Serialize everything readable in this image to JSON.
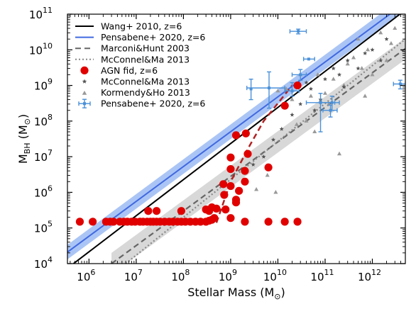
{
  "chart_data": {
    "type": "scatter",
    "title": "",
    "xlabel": "Stellar Mass (M",
    "xlabel_sub": "⊙",
    "xlabel_close": ")",
    "ylabel": "M",
    "ylabel_sub": "BH",
    "ylabel_unit": " (M",
    "ylabel_unit_sub": "⊙",
    "ylabel_close": ")",
    "xscale": "log",
    "yscale": "log",
    "xlim": [
      350000,
      5000000000000
    ],
    "ylim": [
      10000,
      100000000000
    ],
    "grid": false,
    "legend_position": "top-left",
    "x_ticks": [
      {
        "value": 1000000,
        "base": "10",
        "exp": "6"
      },
      {
        "value": 10000000,
        "base": "10",
        "exp": "7"
      },
      {
        "value": 100000000,
        "base": "10",
        "exp": "8"
      },
      {
        "value": 1000000000,
        "base": "10",
        "exp": "9"
      },
      {
        "value": 10000000000,
        "base": "10",
        "exp": "10"
      },
      {
        "value": 100000000000,
        "base": "10",
        "exp": "11"
      },
      {
        "value": 1000000000000,
        "base": "10",
        "exp": "12"
      }
    ],
    "y_ticks": [
      {
        "value": 10000,
        "base": "10",
        "exp": "4"
      },
      {
        "value": 100000,
        "base": "10",
        "exp": "5"
      },
      {
        "value": 1000000,
        "base": "10",
        "exp": "6"
      },
      {
        "value": 10000000,
        "base": "10",
        "exp": "7"
      },
      {
        "value": 100000000,
        "base": "10",
        "exp": "8"
      },
      {
        "value": 1000000000,
        "base": "10",
        "exp": "9"
      },
      {
        "value": 10000000000,
        "base": "10",
        "exp": "10"
      },
      {
        "value": 100000000000,
        "base": "10",
        "exp": "11"
      }
    ],
    "legend": [
      {
        "label": "Wang+ 2010, z=6",
        "kind": "line",
        "color": "#000000",
        "dash": "solid"
      },
      {
        "label": "Pensabene+ 2020, z=6",
        "kind": "line",
        "color": "#4169e1",
        "dash": "solid"
      },
      {
        "label": "Marconi&Hunt 2003",
        "kind": "line",
        "color": "#666666",
        "dash": "dashed"
      },
      {
        "label": "McConnel&Ma 2013",
        "kind": "line",
        "color": "#888888",
        "dash": "dotted"
      },
      {
        "label": "AGN fid, z=6",
        "kind": "circle",
        "color": "#e00000"
      },
      {
        "label": "McConnel&Ma 2013",
        "kind": "star",
        "color": "#555555"
      },
      {
        "label": "Kormendy&Ho 2013",
        "kind": "triangle",
        "color": "#999999"
      },
      {
        "label": "Pensabene+ 2020, z=6",
        "kind": "errorbar",
        "color": "#4a90d9"
      }
    ],
    "relations": [
      {
        "name": "Wang+ 2010, z=6",
        "color": "#000000",
        "dash": "solid",
        "points": [
          [
            350000,
            7400
          ],
          [
            5000000000000,
            131000000000
          ]
        ]
      },
      {
        "name": "Pensabene+ 2020, z=6",
        "color": "#4169e1",
        "dash": "solid",
        "band_factor": 1.6,
        "points": [
          [
            350000,
            21000
          ],
          [
            5000000000000,
            209000000000
          ]
        ]
      },
      {
        "name": "Marconi&Hunt 2003",
        "color": "#666666",
        "dash": "dashed",
        "band_factor": 2.0,
        "points": [
          [
            3000000,
            10000
          ],
          [
            5000000000000,
            10800000000
          ]
        ]
      },
      {
        "name": "McConnel&Ma 2013",
        "color": "#888888",
        "dash": "dotted",
        "points": [
          [
            6000000,
            10000
          ],
          [
            5000000000000,
            20000000000
          ]
        ]
      }
    ],
    "agn_track": {
      "color": "#b22222",
      "dash": "dashed",
      "points": [
        [
          500000000,
          140000
        ],
        [
          1000000000,
          2000000
        ],
        [
          2500000000,
          20000000
        ],
        [
          5000000000,
          100000000
        ],
        [
          20000000000,
          1000000000
        ]
      ]
    },
    "series": [
      {
        "name": "AGN fid, z=6",
        "marker": "circle",
        "color": "#e00000",
        "points": [
          [
            640000,
            150000
          ],
          [
            1200000,
            150000
          ],
          [
            2300000,
            150000
          ],
          [
            2800000,
            150000
          ],
          [
            3300000,
            150000
          ],
          [
            4500000,
            150000
          ],
          [
            5500000,
            150000
          ],
          [
            6500000,
            150000
          ],
          [
            8000000,
            150000
          ],
          [
            9500000,
            150000
          ],
          [
            12000000,
            150000
          ],
          [
            14000000,
            150000
          ],
          [
            17000000,
            150000
          ],
          [
            20000000,
            150000
          ],
          [
            23000000,
            150000
          ],
          [
            27000000,
            150000
          ],
          [
            32000000,
            150000
          ],
          [
            40000000,
            150000
          ],
          [
            50000000,
            150000
          ],
          [
            60000000,
            150000
          ],
          [
            75000000,
            150000
          ],
          [
            90000000,
            150000
          ],
          [
            110000000,
            150000
          ],
          [
            140000000,
            150000
          ],
          [
            180000000,
            150000
          ],
          [
            230000000,
            150000
          ],
          [
            300000000,
            150000
          ],
          [
            350000000,
            160000
          ],
          [
            400000000,
            170000
          ],
          [
            450000000,
            190000
          ],
          [
            18000000,
            300000
          ],
          [
            27000000,
            300000
          ],
          [
            90000000,
            300000
          ],
          [
            300000000,
            330000
          ],
          [
            350000000,
            300000
          ],
          [
            400000000,
            380000
          ],
          [
            500000000,
            350000
          ],
          [
            780000000,
            330000
          ],
          [
            1000000000,
            190000
          ],
          [
            1300000000,
            520000
          ],
          [
            1300000000,
            620000
          ],
          [
            730000000,
            850000
          ],
          [
            1000000000,
            1500000
          ],
          [
            1500000000,
            1100000
          ],
          [
            2000000000,
            2000000
          ],
          [
            700000000,
            1700000
          ],
          [
            1000000000,
            4500000
          ],
          [
            2000000000,
            4000000
          ],
          [
            2300000000,
            12000000
          ],
          [
            1000000000,
            9500000
          ],
          [
            1300000000,
            40000000
          ],
          [
            2100000000,
            45000000
          ],
          [
            2000000000,
            150000
          ],
          [
            6300000000,
            150000
          ],
          [
            14000000000,
            150000
          ],
          [
            26000000000,
            150000
          ],
          [
            6300000000,
            5000000
          ],
          [
            14000000000,
            270000000
          ],
          [
            26000000000,
            1000000000
          ]
        ]
      },
      {
        "name": "McConnel&Ma 2013",
        "marker": "star",
        "color": "#555555",
        "points": [
          [
            3000000000,
            6000000
          ],
          [
            5000000000,
            10000000
          ],
          [
            8000000000,
            30000000
          ],
          [
            12000000000,
            60000000
          ],
          [
            20000000000,
            150000000
          ],
          [
            30000000000,
            300000000
          ],
          [
            50000000000,
            800000000
          ],
          [
            80000000000,
            400000000
          ],
          [
            100000000000,
            1500000000
          ],
          [
            150000000000,
            3000000000
          ],
          [
            200000000000,
            2000000000
          ],
          [
            300000000000,
            5000000000
          ],
          [
            500000000000,
            3000000000
          ],
          [
            700000000000,
            8000000000
          ],
          [
            1000000000000,
            10000000000
          ],
          [
            1500000000000,
            5000000000
          ],
          [
            2000000000000,
            20000000000
          ],
          [
            60000000000,
            200000000
          ],
          [
            40000000000,
            1200000000
          ],
          [
            250000000000,
            900000000
          ]
        ]
      },
      {
        "name": "Kormendy&Ho 2013",
        "marker": "triangle",
        "color": "#999999",
        "points": [
          [
            3500000000,
            1200000
          ],
          [
            6000000000,
            3000000
          ],
          [
            10000000000,
            700000000
          ],
          [
            15000000000,
            800000000
          ],
          [
            20000000000,
            400000000
          ],
          [
            30000000000,
            2000000000
          ],
          [
            40000000000,
            100000000
          ],
          [
            50000000000,
            500000000
          ],
          [
            70000000000,
            2000000000
          ],
          [
            100000000000,
            600000000
          ],
          [
            150000000000,
            1500000000
          ],
          [
            200000000000,
            12000000
          ],
          [
            300000000000,
            4000000000
          ],
          [
            400000000000,
            6000000000
          ],
          [
            600000000000,
            3000000000
          ],
          [
            800000000000,
            10000000000
          ],
          [
            1000000000000,
            2000000000
          ],
          [
            1500000000000,
            30000000000
          ],
          [
            2000000000000,
            5000000000
          ],
          [
            2500000000000,
            15000000000
          ],
          [
            3000000000000,
            40000000000
          ],
          [
            120000000000,
            300000000
          ],
          [
            25000000000,
            80000000
          ],
          [
            9000000000,
            1000000
          ],
          [
            60000000000,
            50000000
          ],
          [
            500000000000,
            20000000000
          ],
          [
            700000000000,
            500000000
          ],
          [
            250000000000,
            1000000000
          ]
        ]
      },
      {
        "name": "Pensabene+ 2020, z=6",
        "marker": "errorbar",
        "color": "#4a90d9",
        "points": [
          {
            "x": 27000000000,
            "y": 33000000000,
            "xerr": [
              18000000000,
              40000000000
            ],
            "yerr": [
              28000000000,
              38000000000
            ]
          },
          {
            "x": 45000000000,
            "y": 5500000000,
            "xerr": [
              35000000000,
              60000000000
            ],
            "yerr": null
          },
          {
            "x": 30000000000,
            "y": 2000000000,
            "xerr": [
              20000000000,
              40000000000
            ],
            "yerr": [
              1400000000,
              2800000000
            ]
          },
          {
            "x": 2700000000,
            "y": 800000000,
            "xerr": null,
            "yerr": [
              400000000,
              1500000000
            ]
          },
          {
            "x": 6500000000,
            "y": 850000000,
            "xerr": [
              2200000000,
              14000000000
            ],
            "yerr": [
              230000000,
              2400000000
            ]
          },
          {
            "x": 20000000000,
            "y": 700000000,
            "xerr": [
              14000000000,
              28000000000
            ],
            "yerr": [
              500000000,
              1200000000
            ]
          },
          {
            "x": 80000000000,
            "y": 330000000,
            "xerr": [
              40000000000,
              160000000000
            ],
            "yerr": [
              50000000,
              600000000
            ]
          },
          {
            "x": 140000000000,
            "y": 330000000,
            "xerr": [
              80000000000,
              200000000000
            ],
            "yerr": [
              200000000,
              500000000
            ]
          },
          {
            "x": 130000000000,
            "y": 200000000,
            "xerr": [
              90000000000,
              180000000000
            ],
            "yerr": [
              130000000,
              280000000
            ]
          },
          {
            "x": 3900000000000,
            "y": 1100000000,
            "xerr": [
              2800000000000,
              5000000000000
            ],
            "yerr": [
              800000000,
              1400000000
            ]
          }
        ]
      }
    ]
  }
}
